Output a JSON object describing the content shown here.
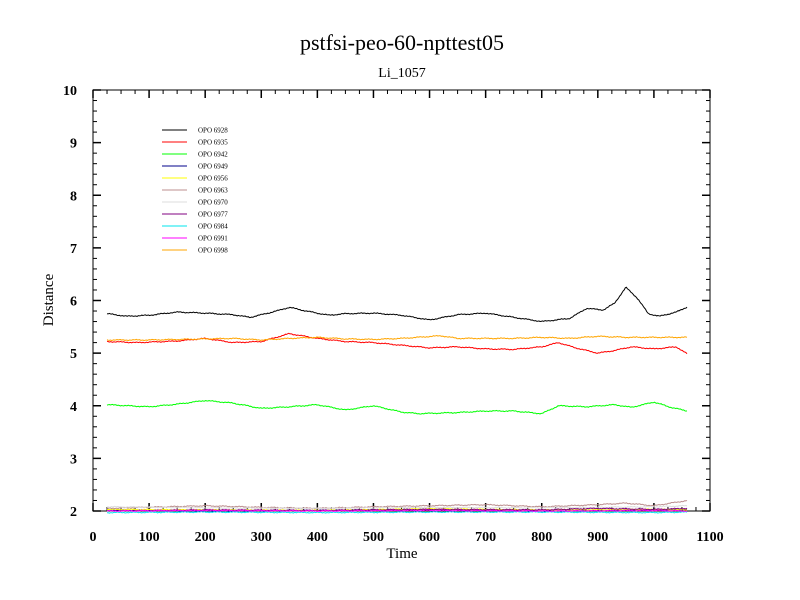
{
  "chart_data": {
    "type": "line",
    "title": "pstfsi-peo-60-npttest05",
    "subtitle": "Li_1057",
    "xlabel": "Time",
    "ylabel": "Distance",
    "xlim": [
      0,
      1100
    ],
    "ylim": [
      2,
      10
    ],
    "xticks": [
      0,
      100,
      200,
      300,
      400,
      500,
      600,
      700,
      800,
      900,
      1000,
      1100
    ],
    "yticks": [
      2,
      3,
      4,
      5,
      6,
      7,
      8,
      9,
      10
    ],
    "legend_position": "top-left",
    "grid": false,
    "series": [
      {
        "name": "OPO 6928",
        "color": "#000000",
        "x": [
          25,
          60,
          100,
          150,
          200,
          250,
          280,
          320,
          350,
          380,
          420,
          450,
          500,
          550,
          600,
          650,
          700,
          750,
          800,
          850,
          880,
          910,
          930,
          950,
          970,
          990,
          1010,
          1040,
          1060
        ],
        "y": [
          5.75,
          5.7,
          5.72,
          5.78,
          5.76,
          5.73,
          5.68,
          5.78,
          5.87,
          5.8,
          5.72,
          5.75,
          5.76,
          5.72,
          5.63,
          5.73,
          5.76,
          5.68,
          5.6,
          5.66,
          5.85,
          5.82,
          5.95,
          6.25,
          6.05,
          5.75,
          5.7,
          5.78,
          5.88
        ]
      },
      {
        "name": "OPO 6935",
        "color": "#ff0000",
        "x": [
          25,
          80,
          150,
          200,
          250,
          300,
          350,
          400,
          450,
          500,
          550,
          600,
          650,
          700,
          750,
          800,
          830,
          860,
          900,
          930,
          960,
          1000,
          1040,
          1060
        ],
        "y": [
          5.22,
          5.2,
          5.23,
          5.28,
          5.2,
          5.22,
          5.37,
          5.28,
          5.22,
          5.2,
          5.15,
          5.1,
          5.12,
          5.08,
          5.07,
          5.12,
          5.2,
          5.1,
          5.0,
          5.05,
          5.12,
          5.08,
          5.12,
          4.98
        ]
      },
      {
        "name": "OPO 6942",
        "color": "#00ff00",
        "x": [
          25,
          100,
          150,
          200,
          250,
          300,
          350,
          400,
          450,
          500,
          550,
          580,
          650,
          700,
          750,
          800,
          830,
          880,
          930,
          960,
          1000,
          1030,
          1060
        ],
        "y": [
          4.02,
          3.98,
          4.03,
          4.1,
          4.05,
          3.95,
          3.98,
          4.02,
          3.92,
          4.0,
          3.88,
          3.85,
          3.87,
          3.9,
          3.9,
          3.85,
          4.0,
          3.98,
          4.02,
          3.97,
          4.07,
          3.97,
          3.9
        ]
      },
      {
        "name": "OPO 6949",
        "color": "#00008b",
        "x": [
          25,
          200,
          400,
          600,
          800,
          1000,
          1060
        ],
        "y": [
          2.02,
          2.0,
          2.01,
          2.03,
          2.0,
          2.02,
          2.03
        ]
      },
      {
        "name": "OPO 6956",
        "color": "#ffff00",
        "x": [
          25,
          200,
          400,
          600,
          800,
          1000,
          1060
        ],
        "y": [
          2.03,
          2.02,
          2.01,
          2.04,
          2.02,
          2.03,
          2.02
        ]
      },
      {
        "name": "OPO 6963",
        "color": "#bc8f8f",
        "x": [
          25,
          200,
          300,
          400,
          500,
          600,
          700,
          800,
          900,
          950,
          1000,
          1060
        ],
        "y": [
          2.05,
          2.1,
          2.07,
          2.05,
          2.08,
          2.1,
          2.12,
          2.08,
          2.12,
          2.15,
          2.1,
          2.2
        ]
      },
      {
        "name": "OPO 6970",
        "color": "#dcdcdc",
        "x": [
          25,
          200,
          400,
          600,
          800,
          1000,
          1060
        ],
        "y": [
          2.08,
          2.06,
          2.05,
          2.07,
          2.06,
          2.08,
          2.1
        ]
      },
      {
        "name": "OPO 6977",
        "color": "#800080",
        "x": [
          25,
          200,
          400,
          600,
          800,
          900,
          1000,
          1060
        ],
        "y": [
          2.0,
          2.02,
          2.01,
          2.03,
          2.02,
          2.05,
          2.03,
          2.05
        ]
      },
      {
        "name": "OPO 6984",
        "color": "#00e5ee",
        "x": [
          25,
          200,
          400,
          600,
          800,
          1000,
          1060
        ],
        "y": [
          1.97,
          1.98,
          1.97,
          1.98,
          1.98,
          1.97,
          1.98
        ]
      },
      {
        "name": "OPO 6991",
        "color": "#ff00ff",
        "x": [
          25,
          200,
          400,
          600,
          800,
          1000,
          1060
        ],
        "y": [
          2.0,
          2.01,
          2.0,
          2.01,
          2.0,
          2.01,
          2.0
        ]
      },
      {
        "name": "OPO 6998",
        "color": "#ffa500",
        "x": [
          25,
          100,
          200,
          250,
          300,
          350,
          400,
          450,
          500,
          550,
          620,
          650,
          700,
          750,
          800,
          850,
          900,
          950,
          1000,
          1060
        ],
        "y": [
          5.25,
          5.25,
          5.27,
          5.28,
          5.25,
          5.28,
          5.3,
          5.27,
          5.26,
          5.28,
          5.33,
          5.28,
          5.28,
          5.28,
          5.3,
          5.28,
          5.32,
          5.3,
          5.3,
          5.3
        ]
      }
    ]
  }
}
